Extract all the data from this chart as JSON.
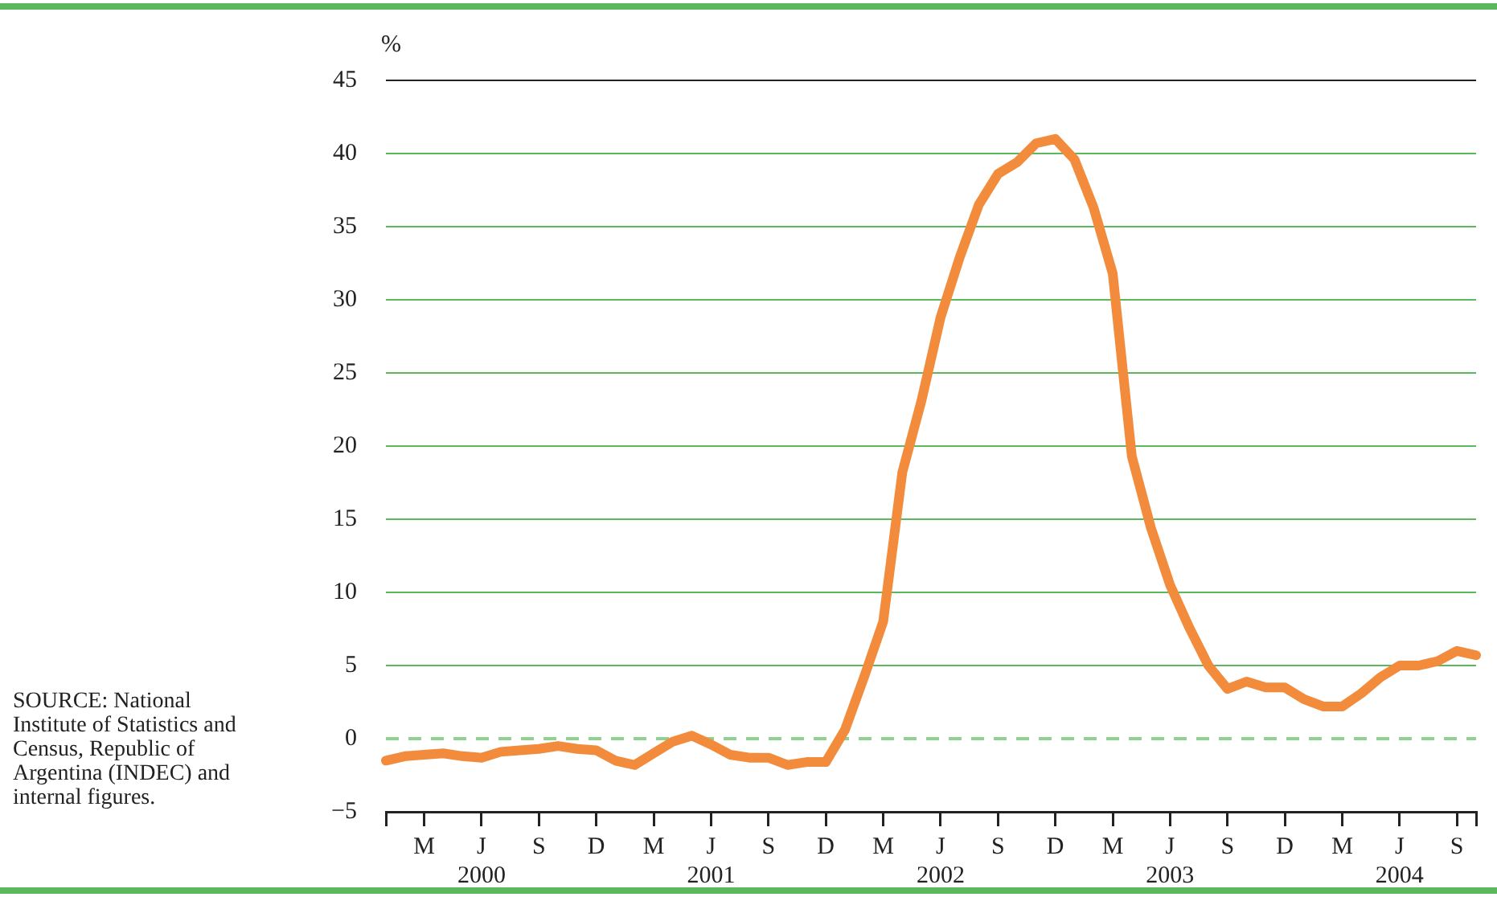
{
  "chart_data": {
    "type": "line",
    "ylabel": "%",
    "categories": [
      null,
      null,
      "M",
      null,
      null,
      "J\n2000",
      null,
      null,
      "S",
      null,
      null,
      "D",
      null,
      null,
      "M",
      null,
      null,
      "J\n2001",
      null,
      null,
      "S",
      null,
      null,
      "D",
      null,
      null,
      "M",
      null,
      null,
      "J\n2002",
      null,
      null,
      "S",
      null,
      null,
      "D",
      null,
      null,
      "M",
      null,
      null,
      "J\n2003",
      null,
      null,
      "S",
      null,
      null,
      "D",
      null,
      null,
      "M",
      null,
      null,
      "J\n2004",
      null,
      null,
      "S",
      null
    ],
    "series": [
      {
        "color": "#f28c3c",
        "values": [
          -1.5,
          -1.2,
          -1.1,
          -1.0,
          -1.2,
          -1.3,
          -0.9,
          -0.8,
          -0.7,
          -0.5,
          -0.7,
          -0.8,
          -1.5,
          -1.8,
          -1.0,
          -0.2,
          0.2,
          -0.4,
          -1.1,
          -1.3,
          -1.3,
          -1.8,
          -1.6,
          -1.6,
          0.6,
          4.2,
          8.0,
          18.2,
          23.1,
          28.8,
          32.9,
          36.5,
          38.6,
          39.4,
          40.7,
          41.0,
          39.6,
          36.3,
          31.8,
          19.3,
          14.4,
          10.5,
          7.6,
          5.0,
          3.4,
          3.9,
          3.5,
          3.5,
          2.7,
          2.2,
          2.2,
          3.1,
          4.2,
          5.0,
          5.0,
          5.3,
          6.0,
          5.7
        ]
      }
    ],
    "ylim": [
      -5,
      45
    ],
    "yticks": [
      -5,
      0,
      5,
      10,
      15,
      20,
      25,
      30,
      35,
      40,
      45
    ],
    "grid": "y",
    "legend": false,
    "marker": "none",
    "line_style": "solid",
    "ref_lines": [
      {
        "axis": "y",
        "value": 0,
        "color": "#8fd18f",
        "line_style": "dashed"
      }
    ],
    "annotations": [
      "SOURCE: National Institute of Statistics and Census, Republic of Argentina (INDEC) and internal figures."
    ]
  }
}
